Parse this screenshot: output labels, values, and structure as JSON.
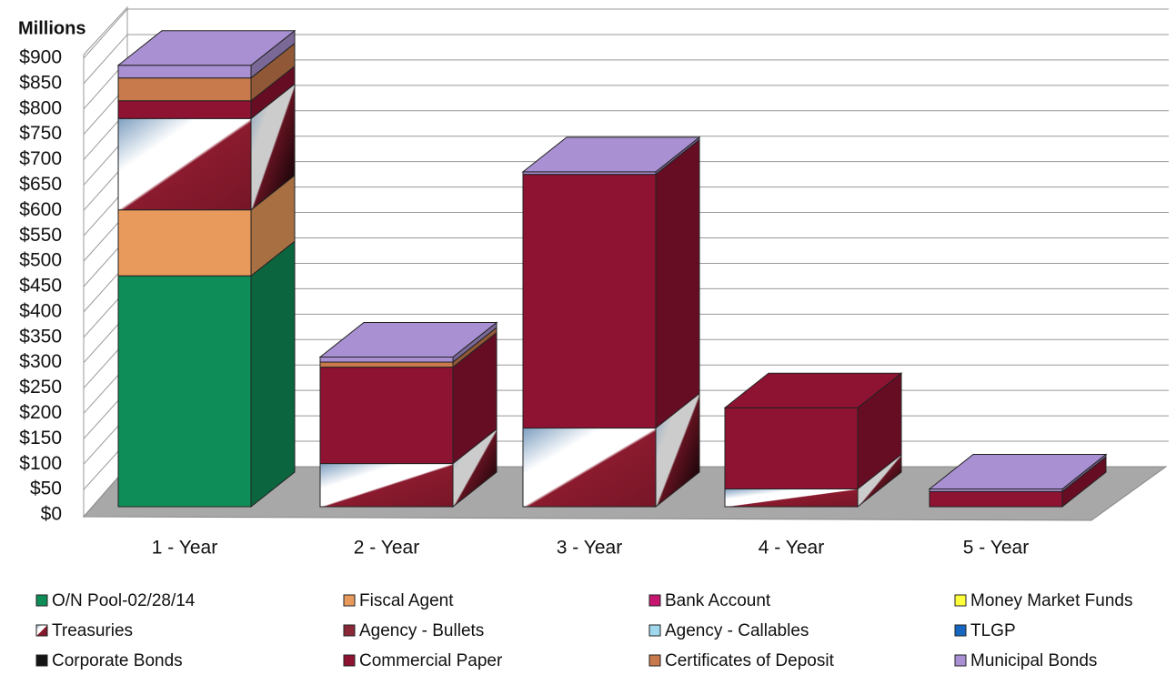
{
  "chart_data": {
    "type": "bar",
    "stacked": true,
    "y_axis_title": "Millions",
    "categories": [
      "1 - Year",
      "2 - Year",
      "3 - Year",
      "4 - Year",
      "5 - Year"
    ],
    "ylim": [
      0,
      900
    ],
    "yticks": [
      {
        "value": 0,
        "label": "$0"
      },
      {
        "value": 50,
        "label": "$50"
      },
      {
        "value": 100,
        "label": "$100"
      },
      {
        "value": 150,
        "label": "$150"
      },
      {
        "value": 200,
        "label": "$200"
      },
      {
        "value": 250,
        "label": "$250"
      },
      {
        "value": 300,
        "label": "$300"
      },
      {
        "value": 350,
        "label": "$350"
      },
      {
        "value": 400,
        "label": "$400"
      },
      {
        "value": 450,
        "label": "$450"
      },
      {
        "value": 500,
        "label": "$500"
      },
      {
        "value": 550,
        "label": "$550"
      },
      {
        "value": 600,
        "label": "$600"
      },
      {
        "value": 650,
        "label": "$650"
      },
      {
        "value": 700,
        "label": "$700"
      },
      {
        "value": 750,
        "label": "$750"
      },
      {
        "value": 800,
        "label": "$800"
      },
      {
        "value": 850,
        "label": "$850"
      },
      {
        "value": 900,
        "label": "$900"
      }
    ],
    "grid": true,
    "legend": "bottom",
    "series": [
      {
        "name": "O/N Pool-02/28/14",
        "color": "#0f8d58",
        "values": [
          455,
          0,
          0,
          0,
          0
        ]
      },
      {
        "name": "Fiscal Agent",
        "color": "#e89a5c",
        "values": [
          130,
          0,
          0,
          0,
          0
        ]
      },
      {
        "name": "Bank Account",
        "color": "#c8156f",
        "values": [
          0,
          0,
          0,
          0,
          0
        ]
      },
      {
        "name": "Money Market Funds",
        "color": "#ffff3a",
        "values": [
          0,
          0,
          0,
          0,
          0
        ]
      },
      {
        "name": "Treasuries",
        "color": "#ffffff",
        "gradient_to": "#8b1a2e",
        "values": [
          180,
          85,
          155,
          35,
          0
        ]
      },
      {
        "name": "Agency -  Bullets",
        "color": "#8a2838",
        "values": [
          0,
          0,
          0,
          0,
          0
        ]
      },
      {
        "name": "Agency - Callables",
        "color": "#9fd8ec",
        "values": [
          0,
          0,
          0,
          0,
          0
        ]
      },
      {
        "name": "TLGP",
        "color": "#1766c0",
        "values": [
          0,
          0,
          0,
          0,
          0
        ]
      },
      {
        "name": "Corporate Bonds",
        "color": "#141414",
        "values": [
          0,
          0,
          0,
          0,
          0
        ]
      },
      {
        "name": "Commercial Paper",
        "color": "#8e1232",
        "values": [
          35,
          190,
          500,
          160,
          30
        ]
      },
      {
        "name": "Certificates of Deposit",
        "color": "#c87a4c",
        "values": [
          45,
          10,
          0,
          0,
          0
        ]
      },
      {
        "name": "Municipal Bonds",
        "color": "#a990d2",
        "values": [
          25,
          10,
          5,
          0,
          5
        ]
      }
    ]
  }
}
